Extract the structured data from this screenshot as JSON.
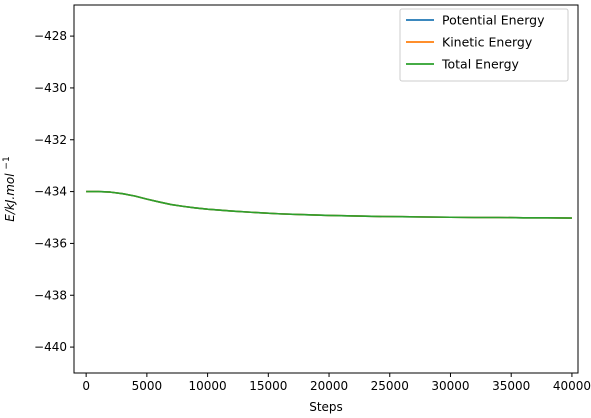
{
  "chart_data": {
    "type": "line",
    "title": "",
    "xlabel": "Steps",
    "ylabel_base": "E/kJ.mol",
    "ylabel_superscript": "−1",
    "xlim": [
      -1000,
      40500
    ],
    "ylim": [
      -441,
      -426.8
    ],
    "x_ticks": [
      0,
      5000,
      10000,
      15000,
      20000,
      25000,
      30000,
      35000,
      40000
    ],
    "x_tick_labels": [
      "0",
      "5000",
      "10000",
      "15000",
      "20000",
      "25000",
      "30000",
      "35000",
      "40000"
    ],
    "y_ticks": [
      -428,
      -430,
      -432,
      -434,
      -436,
      -438,
      -440
    ],
    "y_tick_labels": [
      "−428",
      "−430",
      "−432",
      "−434",
      "−436",
      "−438",
      "−440"
    ],
    "grid": false,
    "legend_position": "top-right",
    "series": [
      {
        "name": "Potential Energy",
        "color": "#1f77b4",
        "x": [
          0,
          1000,
          2000,
          3000,
          4000,
          5000,
          6000,
          7000,
          8000,
          9000,
          10000,
          12000,
          14000,
          16000,
          18000,
          20000,
          22000,
          24000,
          26000,
          28000,
          30000,
          32000,
          34000,
          36000,
          38000,
          40000
        ],
        "y": [
          -434.0,
          -434.0,
          -434.02,
          -434.08,
          -434.17,
          -434.29,
          -434.4,
          -434.5,
          -434.57,
          -434.63,
          -434.68,
          -434.75,
          -434.81,
          -434.86,
          -434.89,
          -434.92,
          -434.94,
          -434.96,
          -434.97,
          -434.98,
          -434.99,
          -435.0,
          -435.0,
          -435.01,
          -435.01,
          -435.02
        ]
      },
      {
        "name": "Kinetic Energy",
        "color": "#ff7f0e",
        "x": [
          0,
          1000,
          2000,
          3000,
          4000,
          5000,
          6000,
          7000,
          8000,
          9000,
          10000,
          12000,
          14000,
          16000,
          18000,
          20000,
          22000,
          24000,
          26000,
          28000,
          30000,
          32000,
          34000,
          36000,
          38000,
          40000
        ],
        "y": [
          -434.0,
          -434.0,
          -434.02,
          -434.08,
          -434.17,
          -434.29,
          -434.4,
          -434.5,
          -434.57,
          -434.63,
          -434.68,
          -434.75,
          -434.81,
          -434.86,
          -434.89,
          -434.92,
          -434.94,
          -434.96,
          -434.97,
          -434.98,
          -434.99,
          -435.0,
          -435.0,
          -435.01,
          -435.01,
          -435.02
        ]
      },
      {
        "name": "Total Energy",
        "color": "#2ca02c",
        "x": [
          0,
          1000,
          2000,
          3000,
          4000,
          5000,
          6000,
          7000,
          8000,
          9000,
          10000,
          12000,
          14000,
          16000,
          18000,
          20000,
          22000,
          24000,
          26000,
          28000,
          30000,
          32000,
          34000,
          36000,
          38000,
          40000
        ],
        "y": [
          -434.0,
          -434.0,
          -434.02,
          -434.08,
          -434.17,
          -434.29,
          -434.4,
          -434.5,
          -434.57,
          -434.63,
          -434.68,
          -434.75,
          -434.81,
          -434.86,
          -434.89,
          -434.92,
          -434.94,
          -434.96,
          -434.97,
          -434.98,
          -434.99,
          -435.0,
          -435.0,
          -435.01,
          -435.01,
          -435.02
        ]
      }
    ]
  }
}
